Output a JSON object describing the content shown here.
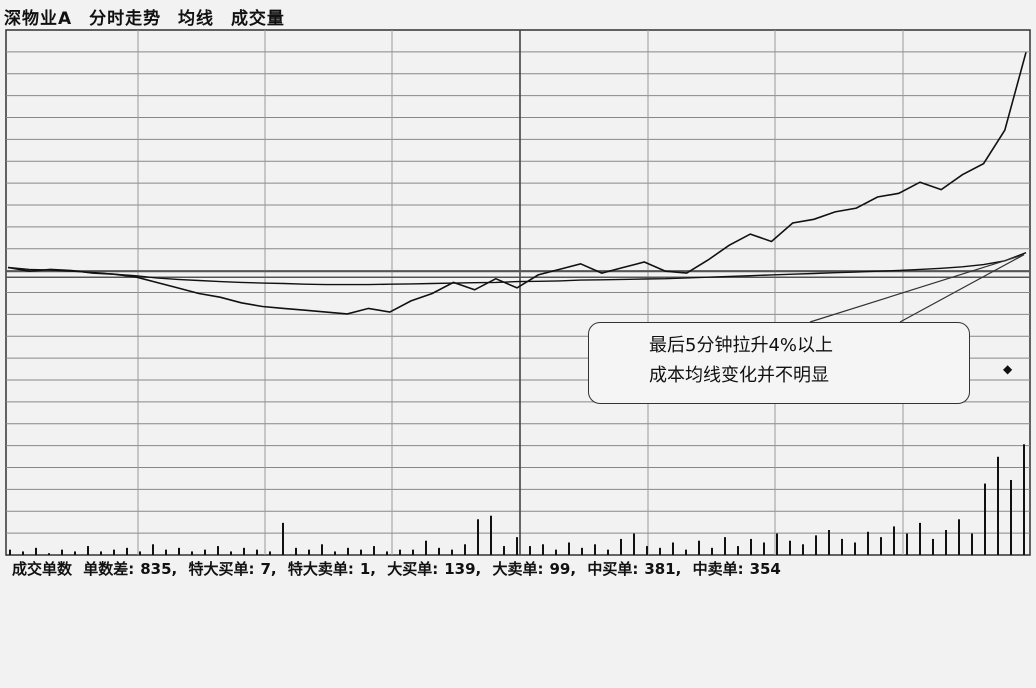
{
  "header": {
    "stock": "深物业A",
    "view": "分时走势",
    "ma_label": "均线",
    "vol_label": "成交量"
  },
  "annotation": {
    "line1": "最后5分钟拉升4%以上",
    "line2": "成本均线变化并不明显"
  },
  "stats": {
    "label": "成交单数",
    "items": [
      {
        "label": "单数差:",
        "value": "835,"
      },
      {
        "label": "特大买单:",
        "value": "7,"
      },
      {
        "label": "特大卖单:",
        "value": "1,"
      },
      {
        "label": "大买单:",
        "value": "139,"
      },
      {
        "label": "大卖单:",
        "value": "99,"
      },
      {
        "label": "中买单:",
        "value": "381,"
      },
      {
        "label": "中卖单:",
        "value": "354"
      }
    ]
  },
  "chart_data": [
    {
      "type": "line",
      "series": [
        {
          "values": [
            0.1,
            0.0,
            0.05,
            0.02,
            -0.05,
            -0.08,
            -0.15,
            -0.3,
            -0.45,
            -0.6,
            -0.7,
            -0.85,
            -0.95,
            -1.0,
            -1.05,
            -1.1,
            -1.15,
            -1.0,
            -1.1,
            -0.8,
            -0.6,
            -0.3,
            -0.5,
            -0.2,
            -0.45,
            -0.1,
            0.05,
            0.2,
            -0.05,
            0.1,
            0.25,
            0.0,
            -0.05,
            0.3,
            0.7,
            1.0,
            0.8,
            1.3,
            1.4,
            1.6,
            1.7,
            2.0,
            2.1,
            2.4,
            2.2,
            2.6,
            2.9,
            3.8,
            5.9
          ]
        },
        {
          "values": [
            0.1,
            0.05,
            0.03,
            0.0,
            -0.03,
            -0.08,
            -0.12,
            -0.18,
            -0.22,
            -0.25,
            -0.28,
            -0.3,
            -0.32,
            -0.33,
            -0.35,
            -0.36,
            -0.36,
            -0.36,
            -0.35,
            -0.34,
            -0.33,
            -0.32,
            -0.31,
            -0.3,
            -0.28,
            -0.27,
            -0.26,
            -0.24,
            -0.23,
            -0.22,
            -0.21,
            -0.2,
            -0.18,
            -0.16,
            -0.14,
            -0.12,
            -0.1,
            -0.08,
            -0.06,
            -0.04,
            -0.02,
            0.0,
            0.02,
            0.05,
            0.08,
            0.12,
            0.18,
            0.28,
            0.5
          ]
        }
      ],
      "ylim": [
        -3.2,
        6.5
      ],
      "grid": true
    },
    {
      "type": "bar",
      "values": [
        3,
        2,
        4,
        1,
        3,
        2,
        5,
        2,
        3,
        4,
        2,
        6,
        3,
        4,
        2,
        3,
        5,
        2,
        4,
        3,
        2,
        18,
        4,
        3,
        6,
        2,
        4,
        3,
        5,
        2,
        3,
        3,
        8,
        4,
        3,
        6,
        20,
        22,
        5,
        10,
        5,
        6,
        3,
        7,
        4,
        6,
        3,
        9,
        12,
        5,
        4,
        7,
        3,
        8,
        4,
        10,
        5,
        9,
        7,
        12,
        8,
        6,
        11,
        14,
        9,
        7,
        13,
        10,
        16,
        12,
        18,
        9,
        14,
        20,
        12,
        40,
        55,
        42,
        62
      ],
      "ylim": [
        0,
        70
      ],
      "grid": true
    }
  ]
}
